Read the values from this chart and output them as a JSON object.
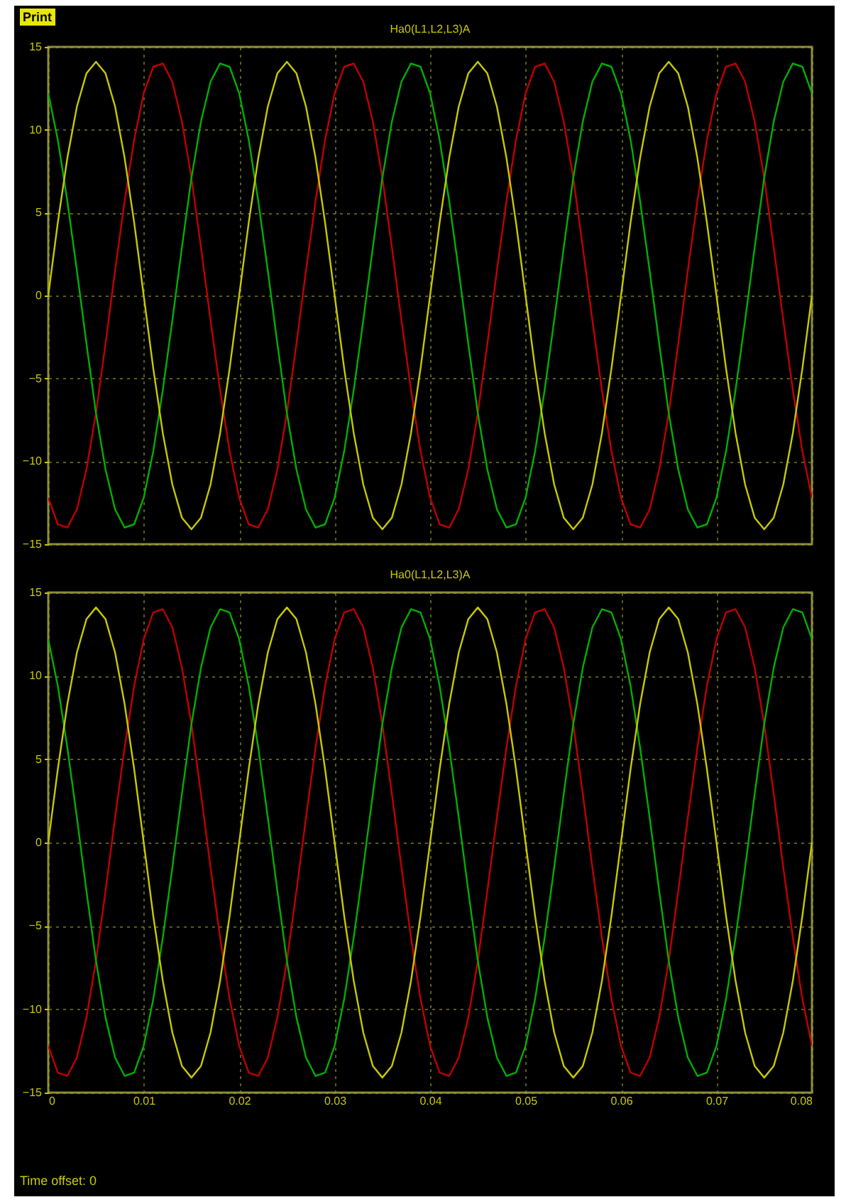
{
  "chart_data": [
    {
      "type": "line",
      "title": "Ha0(L1,L2,L3)A",
      "annotations": [
        "Print"
      ],
      "x": [
        0,
        0.001,
        0.002,
        0.003,
        0.004,
        0.005,
        0.006,
        0.007,
        0.008,
        0.009,
        0.01,
        0.011,
        0.012,
        0.013,
        0.014,
        0.015,
        0.016,
        0.017,
        0.018,
        0.019,
        0.02,
        0.021,
        0.022,
        0.023,
        0.024,
        0.025,
        0.026,
        0.027,
        0.028,
        0.029,
        0.03,
        0.031,
        0.032,
        0.033,
        0.034,
        0.035,
        0.036,
        0.037,
        0.038,
        0.039,
        0.04,
        0.041,
        0.042,
        0.043,
        0.044,
        0.045,
        0.046,
        0.047,
        0.048,
        0.049,
        0.05,
        0.051,
        0.052,
        0.053,
        0.054,
        0.055,
        0.056,
        0.057,
        0.058,
        0.059,
        0.06,
        0.061,
        0.062,
        0.063,
        0.064,
        0.065,
        0.066,
        0.067,
        0.068,
        0.069,
        0.07,
        0.071,
        0.072,
        0.073,
        0.074,
        0.075,
        0.076,
        0.077,
        0.078,
        0.079,
        0.08
      ],
      "series": [
        {
          "color": "#c00000",
          "values": [
            -12.2,
            -13.8,
            -14,
            -12.9,
            -10.5,
            -7.1,
            -2.9,
            1.5,
            5.7,
            9.4,
            12.2,
            13.8,
            14,
            12.9,
            10.5,
            7.1,
            2.9,
            -1.5,
            -5.7,
            -9.4,
            -12.2,
            -13.8,
            -14,
            -12.9,
            -10.5,
            -7.1,
            -2.9,
            1.5,
            5.7,
            9.4,
            12.2,
            13.8,
            14,
            12.9,
            10.5,
            7.1,
            2.9,
            -1.5,
            -5.7,
            -9.4,
            -12.2,
            -13.8,
            -14,
            -12.9,
            -10.5,
            -7.1,
            -2.9,
            1.5,
            5.7,
            9.4,
            12.2,
            13.8,
            14,
            12.9,
            10.5,
            7.1,
            2.9,
            -1.5,
            -5.7,
            -9.4,
            -12.2,
            -13.8,
            -14,
            -12.9,
            -10.5,
            -7.1,
            -2.9,
            1.5,
            5.7,
            9.4,
            12.2,
            13.8,
            14,
            12.9,
            10.5,
            7.1,
            2.9,
            -1.5,
            -5.7,
            -9.4,
            -12.2
          ]
        },
        {
          "color": "#00b000",
          "values": [
            12.2,
            9.4,
            5.7,
            1.5,
            -2.9,
            -7.1,
            -10.5,
            -12.9,
            -14,
            -13.8,
            -12.2,
            -9.4,
            -5.7,
            -1.5,
            2.9,
            7.1,
            10.5,
            12.9,
            14,
            13.8,
            12.2,
            9.4,
            5.7,
            1.5,
            -2.9,
            -7.1,
            -10.5,
            -12.9,
            -14,
            -13.8,
            -12.2,
            -9.4,
            -5.7,
            -1.5,
            2.9,
            7.1,
            10.5,
            12.9,
            14,
            13.8,
            12.2,
            9.4,
            5.7,
            1.5,
            -2.9,
            -7.1,
            -10.5,
            -12.9,
            -14,
            -13.8,
            -12.2,
            -9.4,
            -5.7,
            -1.5,
            2.9,
            7.1,
            10.5,
            12.9,
            14,
            13.8,
            12.2,
            9.4,
            5.7,
            1.5,
            -2.9,
            -7.1,
            -10.5,
            -12.9,
            -14,
            -13.8,
            -12.2,
            -9.4,
            -5.7,
            -1.5,
            2.9,
            7.1,
            10.5,
            12.9,
            14,
            13.8,
            12.2
          ]
        },
        {
          "color": "#c8c800",
          "values": [
            0,
            4.4,
            8.3,
            11.4,
            13.4,
            14.1,
            13.4,
            11.4,
            8.3,
            4.4,
            0,
            -4.4,
            -8.3,
            -11.4,
            -13.4,
            -14.1,
            -13.4,
            -11.4,
            -8.3,
            -4.4,
            0,
            4.4,
            8.3,
            11.4,
            13.4,
            14.1,
            13.4,
            11.4,
            8.3,
            4.4,
            0,
            -4.4,
            -8.3,
            -11.4,
            -13.4,
            -14.1,
            -13.4,
            -11.4,
            -8.3,
            -4.4,
            0,
            4.4,
            8.3,
            11.4,
            13.4,
            14.1,
            13.4,
            11.4,
            8.3,
            4.4,
            0,
            -4.4,
            -8.3,
            -11.4,
            -13.4,
            -14.1,
            -13.4,
            -11.4,
            -8.3,
            -4.4,
            0,
            4.4,
            8.3,
            11.4,
            13.4,
            14.1,
            13.4,
            11.4,
            8.3,
            4.4,
            0,
            -4.4,
            -8.3,
            -11.4,
            -13.4,
            -14.1,
            -13.4,
            -11.4,
            -8.3,
            -4.4,
            0
          ]
        }
      ],
      "xlim": [
        0,
        0.08
      ],
      "xticks": [
        0,
        0.01,
        0.02,
        0.03,
        0.04,
        0.05,
        0.06,
        0.07,
        0.08
      ],
      "ylim": [
        -15,
        15
      ],
      "yticks": [
        -15,
        -10,
        -5,
        0,
        5,
        10,
        15
      ],
      "grid": true,
      "tick_labels": "y"
    },
    {
      "type": "line",
      "title": "Ha0(L1,L2,L3)A",
      "annotations": [
        "Time offset: 0"
      ],
      "x": [
        0,
        0.001,
        0.002,
        0.003,
        0.004,
        0.005,
        0.006,
        0.007,
        0.008,
        0.009,
        0.01,
        0.011,
        0.012,
        0.013,
        0.014,
        0.015,
        0.016,
        0.017,
        0.018,
        0.019,
        0.02,
        0.021,
        0.022,
        0.023,
        0.024,
        0.025,
        0.026,
        0.027,
        0.028,
        0.029,
        0.03,
        0.031,
        0.032,
        0.033,
        0.034,
        0.035,
        0.036,
        0.037,
        0.038,
        0.039,
        0.04,
        0.041,
        0.042,
        0.043,
        0.044,
        0.045,
        0.046,
        0.047,
        0.048,
        0.049,
        0.05,
        0.051,
        0.052,
        0.053,
        0.054,
        0.055,
        0.056,
        0.057,
        0.058,
        0.059,
        0.06,
        0.061,
        0.062,
        0.063,
        0.064,
        0.065,
        0.066,
        0.067,
        0.068,
        0.069,
        0.07,
        0.071,
        0.072,
        0.073,
        0.074,
        0.075,
        0.076,
        0.077,
        0.078,
        0.079,
        0.08
      ],
      "series": [
        {
          "color": "#c00000",
          "values": [
            -12.2,
            -13.8,
            -14,
            -12.9,
            -10.5,
            -7.1,
            -2.9,
            1.5,
            5.7,
            9.4,
            12.2,
            13.8,
            14,
            12.9,
            10.5,
            7.1,
            2.9,
            -1.5,
            -5.7,
            -9.4,
            -12.2,
            -13.8,
            -14,
            -12.9,
            -10.5,
            -7.1,
            -2.9,
            1.5,
            5.7,
            9.4,
            12.2,
            13.8,
            14,
            12.9,
            10.5,
            7.1,
            2.9,
            -1.5,
            -5.7,
            -9.4,
            -12.2,
            -13.8,
            -14,
            -12.9,
            -10.5,
            -7.1,
            -2.9,
            1.5,
            5.7,
            9.4,
            12.2,
            13.8,
            14,
            12.9,
            10.5,
            7.1,
            2.9,
            -1.5,
            -5.7,
            -9.4,
            -12.2,
            -13.8,
            -14,
            -12.9,
            -10.5,
            -7.1,
            -2.9,
            1.5,
            5.7,
            9.4,
            12.2,
            13.8,
            14,
            12.9,
            10.5,
            7.1,
            2.9,
            -1.5,
            -5.7,
            -9.4,
            -12.2
          ]
        },
        {
          "color": "#00b000",
          "values": [
            12.2,
            9.4,
            5.7,
            1.5,
            -2.9,
            -7.1,
            -10.5,
            -12.9,
            -14,
            -13.8,
            -12.2,
            -9.4,
            -5.7,
            -1.5,
            2.9,
            7.1,
            10.5,
            12.9,
            14,
            13.8,
            12.2,
            9.4,
            5.7,
            1.5,
            -2.9,
            -7.1,
            -10.5,
            -12.9,
            -14,
            -13.8,
            -12.2,
            -9.4,
            -5.7,
            -1.5,
            2.9,
            7.1,
            10.5,
            12.9,
            14,
            13.8,
            12.2,
            9.4,
            5.7,
            1.5,
            -2.9,
            -7.1,
            -10.5,
            -12.9,
            -14,
            -13.8,
            -12.2,
            -9.4,
            -5.7,
            -1.5,
            2.9,
            7.1,
            10.5,
            12.9,
            14,
            13.8,
            12.2,
            9.4,
            5.7,
            1.5,
            -2.9,
            -7.1,
            -10.5,
            -12.9,
            -14,
            -13.8,
            -12.2,
            -9.4,
            -5.7,
            -1.5,
            2.9,
            7.1,
            10.5,
            12.9,
            14,
            13.8,
            12.2
          ]
        },
        {
          "color": "#c8c800",
          "values": [
            0,
            4.4,
            8.3,
            11.4,
            13.4,
            14.1,
            13.4,
            11.4,
            8.3,
            4.4,
            0,
            -4.4,
            -8.3,
            -11.4,
            -13.4,
            -14.1,
            -13.4,
            -11.4,
            -8.3,
            -4.4,
            0,
            4.4,
            8.3,
            11.4,
            13.4,
            14.1,
            13.4,
            11.4,
            8.3,
            4.4,
            0,
            -4.4,
            -8.3,
            -11.4,
            -13.4,
            -14.1,
            -13.4,
            -11.4,
            -8.3,
            -4.4,
            0,
            4.4,
            8.3,
            11.4,
            13.4,
            14.1,
            13.4,
            11.4,
            8.3,
            4.4,
            0,
            -4.4,
            -8.3,
            -11.4,
            -13.4,
            -14.1,
            -13.4,
            -11.4,
            -8.3,
            -4.4,
            0,
            4.4,
            8.3,
            11.4,
            13.4,
            14.1,
            13.4,
            11.4,
            8.3,
            4.4,
            0,
            -4.4,
            -8.3,
            -11.4,
            -13.4,
            -14.1,
            -13.4,
            -11.4,
            -8.3,
            -4.4,
            0
          ]
        }
      ],
      "xlim": [
        0,
        0.08
      ],
      "xticks": [
        0,
        0.01,
        0.02,
        0.03,
        0.04,
        0.05,
        0.06,
        0.07,
        0.08
      ],
      "ylim": [
        -15,
        15
      ],
      "yticks": [
        -15,
        -10,
        -5,
        0,
        5,
        10,
        15
      ],
      "grid": true
    }
  ]
}
